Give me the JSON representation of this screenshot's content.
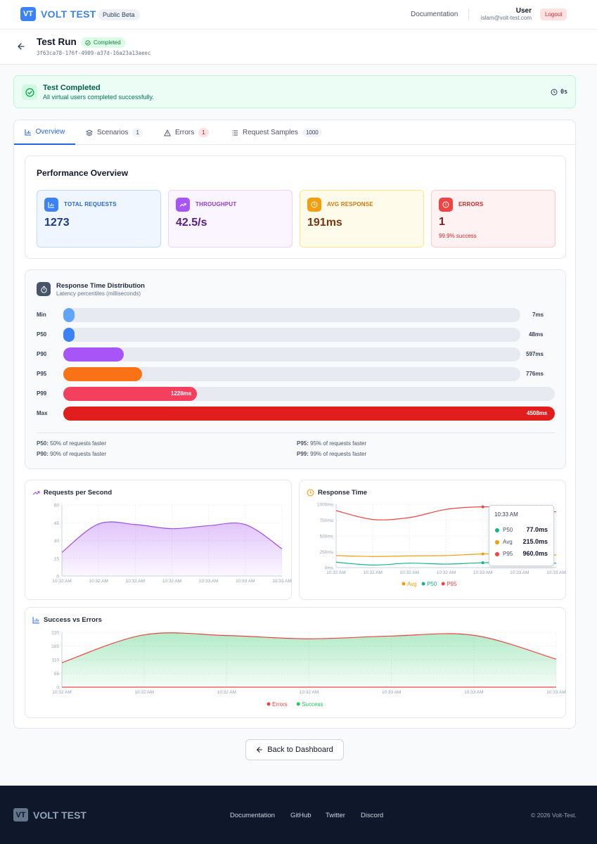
{
  "header": {
    "logo_mark": "VT",
    "brand": "VOLT TEST",
    "beta": "Public Beta",
    "docs": "Documentation",
    "user_name": "User",
    "user_email": "islam@volt-test.com",
    "logout": "Logout"
  },
  "run": {
    "title": "Test Run",
    "status": "Completed",
    "id": "3f63ca78-176f-4909-a37d-16a23a13aeec"
  },
  "banner": {
    "title": "Test Completed",
    "subtitle": "All virtual users completed successfully.",
    "duration": "0s"
  },
  "tabs": [
    {
      "label": "Overview",
      "icon": "bar-chart-icon",
      "count": ""
    },
    {
      "label": "Scenarios",
      "icon": "layers-icon",
      "count": "1"
    },
    {
      "label": "Errors",
      "icon": "warning-icon",
      "count": "1"
    },
    {
      "label": "Request Samples",
      "icon": "list-icon",
      "count": "1000"
    }
  ],
  "overview": {
    "title": "Performance Overview",
    "stats": [
      {
        "label": "TOTAL REQUESTS",
        "value": "1273",
        "sub": "",
        "color": "#2563eb",
        "icon": "bar-chart-icon"
      },
      {
        "label": "THROUGHPUT",
        "value": "42.5/s",
        "sub": "",
        "color": "#9333ea",
        "icon": "trending-up-icon"
      },
      {
        "label": "AVG RESPONSE",
        "value": "191ms",
        "sub": "",
        "color": "#d97706",
        "icon": "clock-icon"
      },
      {
        "label": "ERRORS",
        "value": "1",
        "sub": "99.9% success",
        "color": "#dc2626",
        "icon": "alert-circle-icon"
      }
    ]
  },
  "distribution": {
    "title": "Response Time Distribution",
    "subtitle": "Latency percentiles (milliseconds)",
    "rows": [
      {
        "label": "Min",
        "value": "7ms",
        "ms": 7,
        "color": "#60a5fa"
      },
      {
        "label": "P50",
        "value": "48ms",
        "ms": 48,
        "color": "#3b82f6"
      },
      {
        "label": "P90",
        "value": "597ms",
        "ms": 597,
        "color": "#a855f7"
      },
      {
        "label": "P95",
        "value": "776ms",
        "ms": 776,
        "color": "#f97316"
      },
      {
        "label": "P99",
        "value": "1228ms",
        "ms": 1228,
        "color": "#f43f5e"
      },
      {
        "label": "Max",
        "value": "4508ms",
        "ms": 4508,
        "color": "#e11d1d"
      }
    ],
    "notes": [
      {
        "key": "P50:",
        "text": " 50% of requests faster"
      },
      {
        "key": "P95:",
        "text": " 95% of requests faster"
      },
      {
        "key": "P90:",
        "text": " 90% of requests faster"
      },
      {
        "key": "P99:",
        "text": " 99% of requests faster"
      }
    ]
  },
  "chart_data": [
    {
      "type": "area",
      "title": "Requests per Second",
      "x": [
        "10:32 AM",
        "10:32 AM",
        "10:32 AM",
        "10:32 AM",
        "10:33 AM",
        "10:33 AM",
        "10:33 AM"
      ],
      "series": [
        {
          "values": [
            20,
            44,
            43.5,
            40,
            42.5,
            43.5,
            23
          ]
        }
      ],
      "ylim": [
        0,
        60
      ],
      "yticks": [
        0,
        15,
        30,
        45,
        60
      ],
      "grid": true
    },
    {
      "type": "line",
      "title": "Response Time",
      "x": [
        "10:32 AM",
        "10:32 AM",
        "10:32 AM",
        "10:32 AM",
        "10:33 AM",
        "10:33 AM",
        "10:33 AM"
      ],
      "series": [
        {
          "name": "Avg",
          "color": "#f59e0b",
          "values": [
            190,
            175,
            185,
            190,
            215,
            210,
            200
          ]
        },
        {
          "name": "P50",
          "color": "#10b981",
          "values": [
            85,
            40,
            70,
            55,
            77,
            80,
            70
          ]
        },
        {
          "name": "P95",
          "color": "#ef4444",
          "values": [
            900,
            760,
            790,
            920,
            960,
            940,
            880
          ]
        }
      ],
      "ylim": [
        0,
        1000
      ],
      "yticks": [
        "0ms",
        "250ms",
        "500ms",
        "750ms",
        "1000ms"
      ],
      "grid": true,
      "tooltip": {
        "time": "10:33 AM",
        "rows": [
          {
            "name": "P50",
            "value": "77.0ms"
          },
          {
            "name": "Avg",
            "value": "215.0ms"
          },
          {
            "name": "P95",
            "value": "960.0ms"
          }
        ]
      }
    },
    {
      "type": "area",
      "title": "Success vs Errors",
      "x": [
        "10:32 AM",
        "10:32 AM",
        "10:32 AM",
        "10:32 AM",
        "10:33 AM",
        "10:33 AM",
        "10:33 AM"
      ],
      "series": [
        {
          "name": "Errors",
          "color": "#ef4444",
          "values": [
            0,
            0,
            0,
            0,
            0,
            0,
            0
          ]
        },
        {
          "name": "Success",
          "color": "#22c55e",
          "values": [
            98,
            210,
            207,
            194,
            205,
            208,
            112
          ]
        }
      ],
      "ylim": [
        0,
        220
      ],
      "yticks": [
        0,
        55,
        110,
        165,
        220
      ],
      "grid": true
    }
  ],
  "back_button": "Back to Dashboard",
  "footer": {
    "brand_mark": "VT",
    "brand": "VOLT TEST",
    "links": [
      "Documentation",
      "GitHub",
      "Twitter",
      "Discord"
    ],
    "copyright": "© 2026 Volt-Test."
  }
}
